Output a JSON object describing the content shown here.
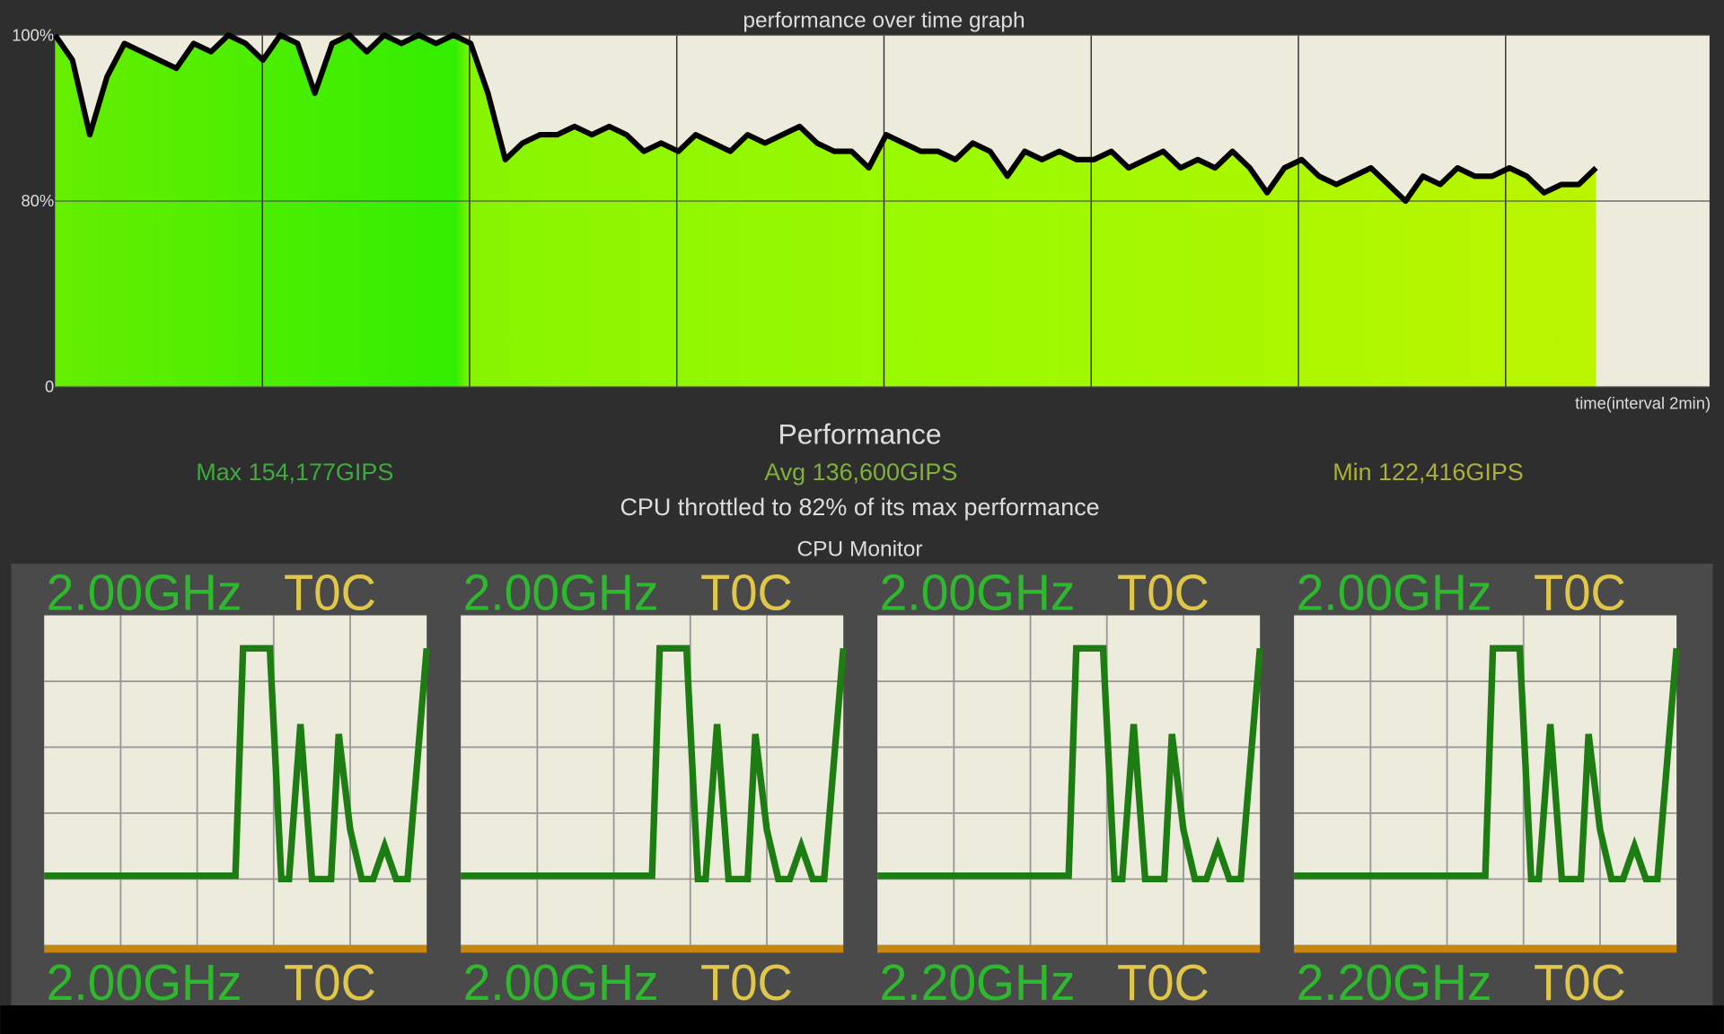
{
  "performance_graph": {
    "title": "performance over time graph",
    "xlabel": "time(interval 2min)",
    "yticks": [
      {
        "value": 0,
        "label": "0"
      },
      {
        "value": 80,
        "label": "80%"
      },
      {
        "value": 100,
        "label": "100%"
      }
    ],
    "values": [
      100,
      97,
      88,
      95,
      99,
      98,
      97,
      96,
      99,
      98,
      100,
      99,
      97,
      100,
      99,
      93,
      99,
      100,
      98,
      100,
      99,
      100,
      99,
      100,
      99,
      93,
      85,
      87,
      88,
      88,
      89,
      88,
      89,
      88,
      86,
      87,
      86,
      88,
      87,
      86,
      88,
      87,
      88,
      89,
      87,
      86,
      86,
      84,
      88,
      87,
      86,
      86,
      85,
      87,
      86,
      83,
      86,
      85,
      86,
      85,
      85,
      86,
      84,
      85,
      86,
      84,
      85,
      84,
      86,
      84,
      81,
      84,
      85,
      83,
      82,
      83,
      84,
      82,
      80,
      83,
      82,
      84,
      83,
      83,
      84,
      83,
      81,
      82,
      82,
      84
    ]
  },
  "stats": {
    "title": "Performance",
    "max": "Max 154,177GIPS",
    "avg": "Avg 136,600GIPS",
    "min": "Min 122,416GIPS",
    "summary": "CPU throttled to 82% of its max performance"
  },
  "cpu_monitor": {
    "title": "CPU Monitor",
    "cores": [
      {
        "freq": "2.00GHz",
        "temp": "T0C",
        "bottom_freq": "2.00GHz",
        "bottom_temp": "T0C"
      },
      {
        "freq": "2.00GHz",
        "temp": "T0C",
        "bottom_freq": "2.00GHz",
        "bottom_temp": "T0C"
      },
      {
        "freq": "2.00GHz",
        "temp": "T0C",
        "bottom_freq": "2.20GHz",
        "bottom_temp": "T0C"
      },
      {
        "freq": "2.00GHz",
        "temp": "T0C",
        "bottom_freq": "2.20GHz",
        "bottom_temp": "T0C"
      }
    ],
    "load": {
      "x": [
        0,
        50,
        52,
        59,
        62,
        64,
        67,
        70,
        72,
        75,
        77,
        80,
        83,
        86,
        89,
        92,
        95,
        100
      ],
      "values": [
        21,
        21,
        90,
        90,
        20,
        20,
        67,
        20,
        20,
        20,
        64,
        35,
        20,
        20,
        30,
        20,
        20,
        90
      ],
      "xlim": [
        0,
        100
      ],
      "ylim": [
        0,
        100
      ]
    }
  }
}
